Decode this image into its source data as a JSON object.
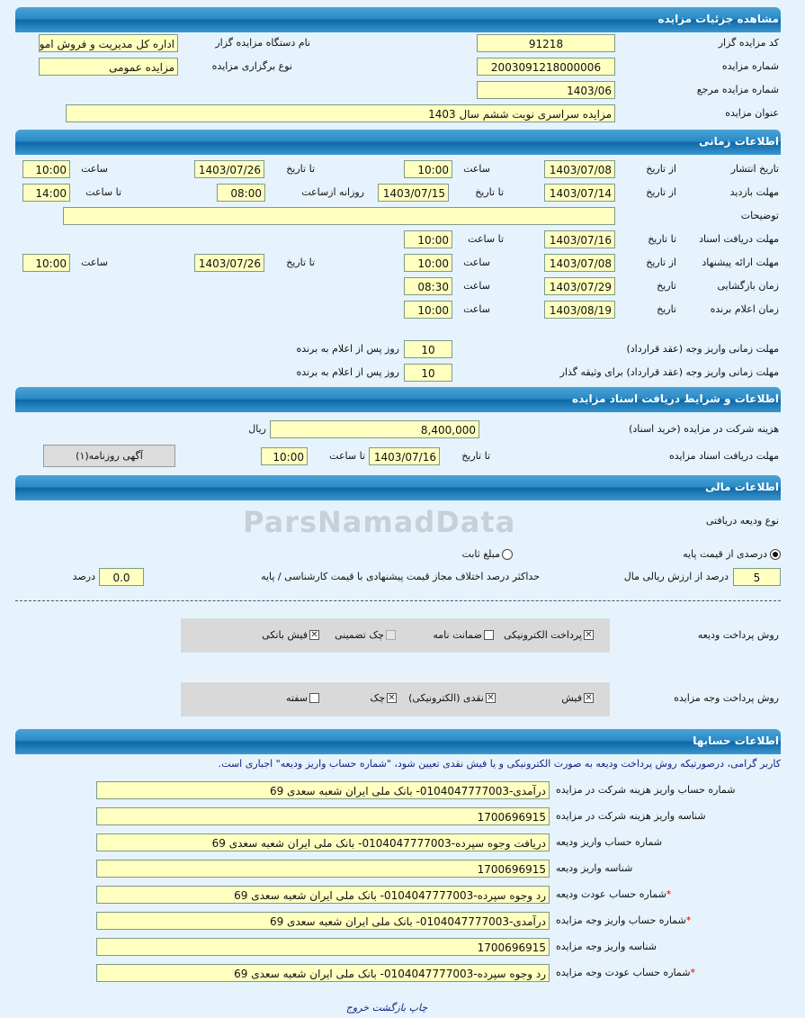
{
  "sections": {
    "details": "مشاهده جزئیات مزایده",
    "timing": "اطلاعات زمانی",
    "documents": "اطلاعات و شرایط دریافت اسناد مزایده",
    "financial": "اطلاعات مالی",
    "accounts": "اطلاعات حسابها"
  },
  "details": {
    "code_label": "کد مزایده گزار",
    "code": "91218",
    "org_label": "نام دستگاه مزایده گزار",
    "org": "اداره کل مدیریت و فروش اموال",
    "number_label": "شماره مزایده",
    "number": "2003091218000006",
    "type_label": "نوع برگزاری مزایده",
    "type": "مزایده عمومی",
    "ref_label": "شماره مزایده مرجع",
    "ref": "1403/06",
    "title_label": "عنوان مزایده",
    "title": "مزایده سراسری نوبت ششم سال 1403"
  },
  "timing": {
    "lbl_from_date": "از تاریخ",
    "lbl_to_date": "تا تاریخ",
    "lbl_time": "ساعت",
    "lbl_to_time": "تا ساعت",
    "lbl_date": "تاریخ",
    "lbl_daily_from": "روزانه ازساعت",
    "publish_label": "تاریخ انتشار",
    "publish_from": "1403/07/08",
    "publish_from_time": "10:00",
    "publish_to": "1403/07/26",
    "publish_to_time": "10:00",
    "visit_label": "مهلت بازدید",
    "visit_from": "1403/07/14",
    "visit_to": "1403/07/15",
    "visit_daily_from": "08:00",
    "visit_to_time": "14:00",
    "desc_label": "توضیحات",
    "desc": "",
    "docs_label": "مهلت دریافت اسناد",
    "docs_to": "1403/07/16",
    "docs_to_time": "10:00",
    "offer_label": "مهلت ارائه پیشنهاد",
    "offer_from": "1403/07/08",
    "offer_from_time": "10:00",
    "offer_to": "1403/07/26",
    "offer_to_time": "10:00",
    "opening_label": "زمان بازگشایی",
    "opening_date": "1403/07/29",
    "opening_time": "08:30",
    "winner_label": "زمان اعلام برنده",
    "winner_date": "1403/08/19",
    "winner_time": "10:00",
    "pay_label": "مهلت زمانی واریز وجه (عقد قرارداد)",
    "pay_days": "10",
    "pay_bail_label": "مهلت زمانی واریز وجه (عقد قرارداد) برای وثیقه گذار",
    "pay_bail_days": "10",
    "days_suffix": "روز پس از اعلام به برنده"
  },
  "documents": {
    "fee_label": "هزینه شرکت در مزایده (خرید اسناد)",
    "fee": "8,400,000",
    "currency": "ریال",
    "deadline_label": "مهلت دریافت اسناد مزایده",
    "to_date_label": "تا تاریخ",
    "to_date": "1403/07/16",
    "to_time_label": "تا ساعت",
    "to_time": "10:00",
    "newspaper_button": "آگهی روزنامه(۱)"
  },
  "financial": {
    "deposit_type_label": "نوع ودیعه دریافتی",
    "opt_percent": "درصدی از قیمت پایه",
    "opt_fixed": "مبلغ ثابت",
    "selected": "percent",
    "percent": "5",
    "percent_label": "درصد از ارزش ریالی مال",
    "max_diff_label": "حداکثر درصد اختلاف مجاز قیمت پیشنهادی با قیمت کارشناسی / پایه",
    "max_diff": "0.0",
    "max_diff_unit": "درصد",
    "deposit_method_label": "روش پرداخت ودیعه",
    "deposit_methods": [
      {
        "label": "پرداخت الکترونیکی",
        "checked": true
      },
      {
        "label": "ضمانت نامه",
        "checked": false
      },
      {
        "label": "چک تضمینی",
        "checked": false,
        "disabled": true
      },
      {
        "label": "فیش بانکی",
        "checked": true
      }
    ],
    "payment_method_label": "روش پرداخت وجه مزایده",
    "payment_methods": [
      {
        "label": "فیش",
        "checked": true
      },
      {
        "label": "نقدی (الکترونیکی)",
        "checked": true
      },
      {
        "label": "چک",
        "checked": true
      },
      {
        "label": "سفته",
        "checked": false
      }
    ]
  },
  "accounts": {
    "note": "کاربر گرامی، درصورتیکه روش پرداخت ودیعه به صورت الکترونیکی و یا فیش نقدی تعیین شود، \"شماره حساب واریز ودیعه\" اجباری است.",
    "rows": [
      {
        "label": "شماره حساب واریز هزینه شرکت در مزایده",
        "value": "درآمدی-0104047777003- بانک ملی ایران شعبه سعدی 69",
        "required": false
      },
      {
        "label": "شناسه واریز هزینه شرکت در مزایده",
        "value": "1700696915",
        "required": false
      },
      {
        "label": "شماره حساب واریز ودیعه",
        "value": "دریافت وجوه سپرده-0104047777003- بانک ملی ایران شعبه سعدی 69",
        "required": false
      },
      {
        "label": "شناسه واریز ودیعه",
        "value": "1700696915",
        "required": false
      },
      {
        "label": "شماره حساب عودت ودیعه",
        "value": "رد وجوه سپرده-0104047777003- بانک ملی ایران شعبه سعدی 69",
        "required": true
      },
      {
        "label": "شماره حساب واریز وجه مزایده",
        "value": "درآمدی-0104047777003- بانک ملی ایران شعبه سعدی 69",
        "required": true
      },
      {
        "label": "شناسه واریز وجه مزایده",
        "value": "1700696915",
        "required": false
      },
      {
        "label": "شماره حساب عودت وجه مزایده",
        "value": "رد وجوه سپرده-0104047777003- بانک ملی ایران شعبه سعدی 69",
        "required": true
      }
    ],
    "required_mark": "*"
  },
  "footer": {
    "print": "چاپ",
    "back": "بازگشت",
    "exit": "خروج"
  },
  "watermark": "ParsNamadData",
  "colors": {
    "header": "#0d68a6",
    "field_bg": "#ffffc0",
    "page_bg": "#e6f3fc",
    "note": "#1a237e"
  }
}
